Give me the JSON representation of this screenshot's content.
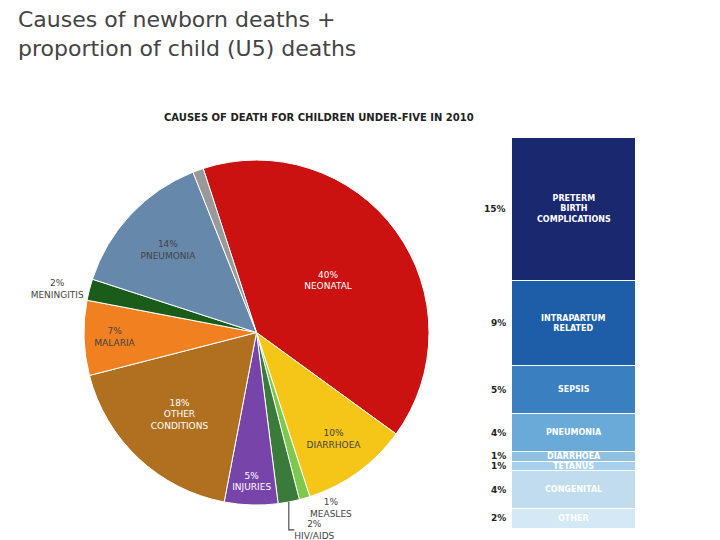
{
  "title": "Causes of newborn deaths +\nproportion of child (U5) deaths",
  "subtitle": "CAUSES OF DEATH FOR CHILDREN UNDER-FIVE IN 2010",
  "chart_data": [
    {
      "type": "pie",
      "categories": [
        "NEONATAL",
        "DIARRHOEA",
        "MEASLES",
        "HIV/AIDS",
        "INJURIES",
        "OTHER\nCONDITIONS",
        "MALARIA",
        "MENINGITIS",
        "PNEUMONIA",
        null
      ],
      "values": [
        40,
        10,
        1,
        2,
        5,
        18,
        7,
        2,
        14,
        1
      ],
      "value_labels": [
        "40%",
        "10%",
        "1%",
        "2%",
        "5%",
        "18%",
        "7%",
        "2%",
        "14%",
        null
      ],
      "colors": [
        "#CC1111",
        "#F5C518",
        "#7EC850",
        "#3A7A3A",
        "#7744AA",
        "#B07020",
        "#F08020",
        "#1A5C1A",
        "#6688AA",
        "#999999"
      ],
      "data_labels": true
    },
    {
      "type": "bar",
      "stacked": true,
      "series": [
        {
          "name": "PRETERM\nBIRTH\nCOMPLICATIONS",
          "color": "#1A2870",
          "values": [
            15
          ],
          "value_labels": [
            "15%"
          ]
        },
        {
          "name": "INTRAPARTUM\nRELATED",
          "color": "#1E5EA8",
          "values": [
            9
          ],
          "value_labels": [
            "9%"
          ]
        },
        {
          "name": "SEPSIS",
          "color": "#3A80C0",
          "values": [
            5
          ],
          "value_labels": [
            "5%"
          ]
        },
        {
          "name": "PNEUMONIA",
          "color": "#6AAAD8",
          "values": [
            4
          ],
          "value_labels": [
            "4%"
          ]
        },
        {
          "name": "DIARRHOEA",
          "color": "#90C0E0",
          "values": [
            1
          ],
          "value_labels": [
            "1%"
          ]
        },
        {
          "name": "TETANUS",
          "color": "#A8D0EC",
          "values": [
            1
          ],
          "value_labels": [
            "1%"
          ]
        },
        {
          "name": "CONGENITAL",
          "color": "#C0DCEE",
          "values": [
            4
          ],
          "value_labels": [
            "4%"
          ]
        },
        {
          "name": "OTHER",
          "color": "#D5E8F5",
          "values": [
            2
          ],
          "value_labels": [
            "2%"
          ]
        }
      ],
      "ylim": [
        0,
        41
      ],
      "tick_labels": false,
      "data_labels": true
    }
  ]
}
